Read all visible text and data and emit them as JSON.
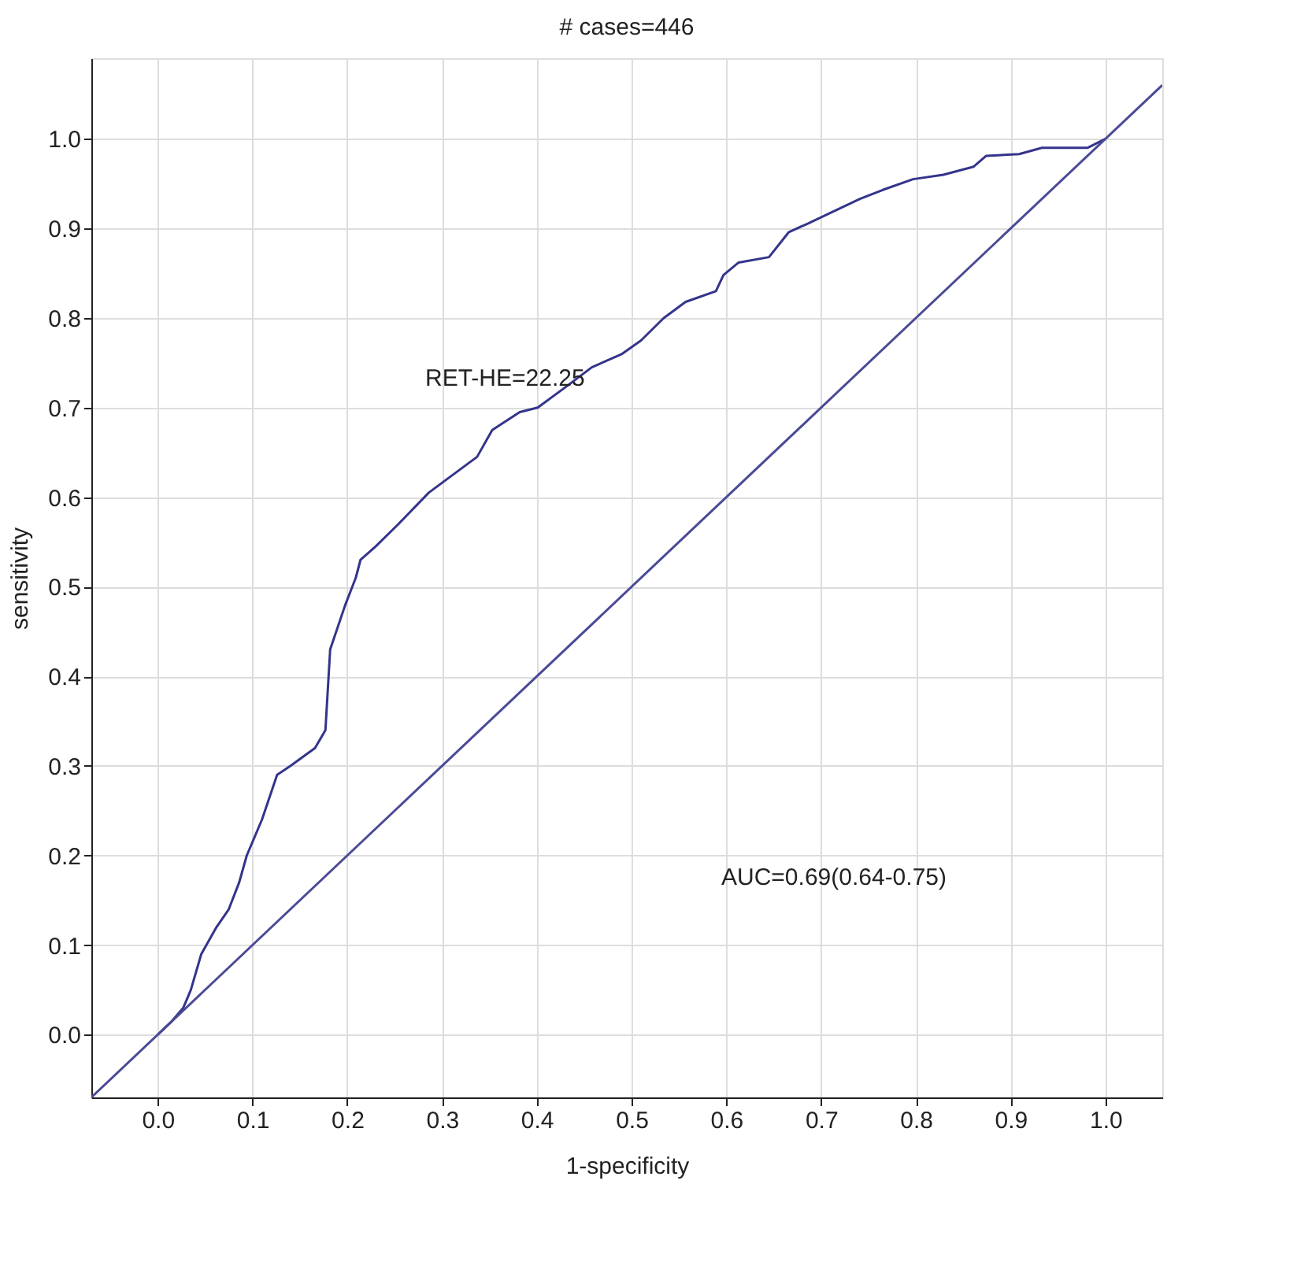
{
  "chart_data": {
    "type": "line",
    "title": "# cases=446",
    "xlabel": "1-specificity",
    "ylabel": "sensitivity",
    "xlim": [
      -0.07,
      1.06
    ],
    "ylim": [
      -0.07,
      1.09
    ],
    "xticks": [
      {
        "value": 0,
        "label": "0.0"
      },
      0.1,
      0.2,
      0.3,
      0.4,
      0.5,
      0.6,
      0.7,
      0.8,
      0.9,
      {
        "value": 1,
        "label": "1.0"
      }
    ],
    "yticks": [
      {
        "value": 0,
        "label": "0.0"
      },
      0.1,
      0.2,
      0.3,
      0.4,
      0.5,
      0.6,
      0.7,
      0.8,
      0.9,
      {
        "value": 1,
        "label": "1.0"
      }
    ],
    "grid": true,
    "marker": "none",
    "line_style": "solid",
    "series": [
      {
        "color": "#34348c",
        "x": [
          0,
          0.014,
          0.027,
          0.035,
          0.046,
          0.062,
          0.075,
          0.086,
          0.094,
          0.11,
          0.126,
          0.14,
          0.166,
          0.177,
          0.182,
          0.198,
          0.209,
          0.214,
          0.23,
          0.254,
          0.286,
          0.305,
          0.337,
          0.353,
          0.382,
          0.401,
          0.433,
          0.458,
          0.49,
          0.51,
          0.534,
          0.557,
          0.589,
          0.597,
          0.613,
          0.645,
          0.666,
          0.685,
          0.709,
          0.741,
          0.765,
          0.797,
          0.829,
          0.861,
          0.874,
          0.909,
          0.933,
          0.981,
          1
        ],
        "values": [
          0,
          0.014,
          0.03,
          0.05,
          0.09,
          0.12,
          0.14,
          0.17,
          0.2,
          0.24,
          0.29,
          0.3,
          0.32,
          0.34,
          0.43,
          0.48,
          0.51,
          0.53,
          0.545,
          0.57,
          0.605,
          0.62,
          0.645,
          0.675,
          0.695,
          0.7,
          0.725,
          0.745,
          0.76,
          0.775,
          0.8,
          0.818,
          0.83,
          0.848,
          0.862,
          0.868,
          0.896,
          0.905,
          0.917,
          0.933,
          0.943,
          0.955,
          0.96,
          0.969,
          0.981,
          0.983,
          0.99,
          0.99,
          1
        ]
      },
      {
        "color": "#4a4a96",
        "x": [
          -0.07,
          1.06
        ],
        "values": [
          -0.07,
          1.06
        ]
      }
    ],
    "annotations": [
      "RET-HE=22.25",
      "AUC=0.69(0.64-0.75)"
    ]
  }
}
